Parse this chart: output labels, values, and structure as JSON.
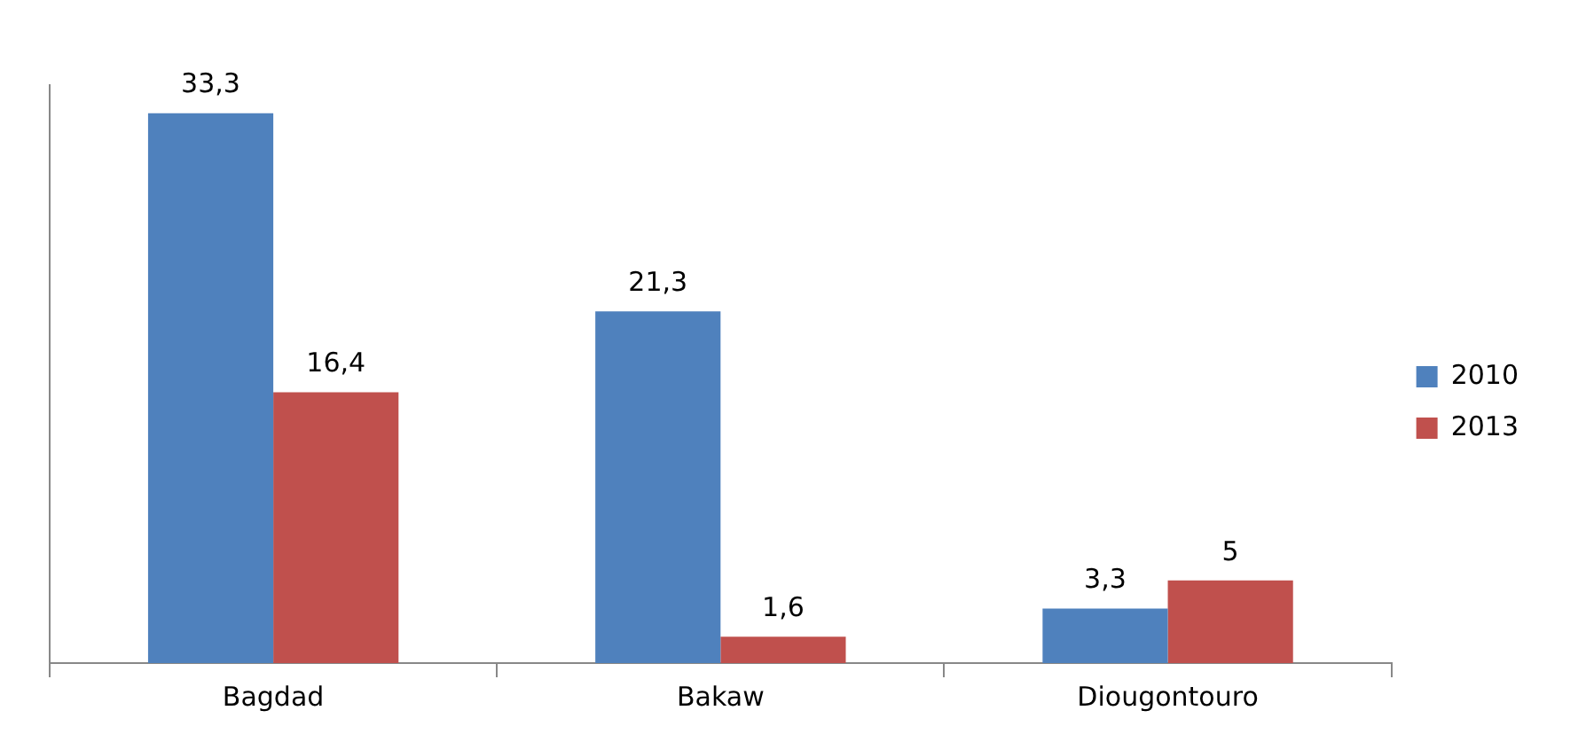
{
  "chart_data": {
    "type": "bar",
    "categories": [
      "Bagdad",
      "Bakaw",
      "Diougontouro"
    ],
    "series": [
      {
        "name": "2010",
        "color": "#4f81bd",
        "values": [
          33.3,
          21.3,
          3.3
        ],
        "value_labels": [
          "33,3",
          "21,3",
          "3,3"
        ]
      },
      {
        "name": "2013",
        "color": "#c0504d",
        "values": [
          16.4,
          1.6,
          5
        ],
        "value_labels": [
          "16,4",
          "1,6",
          "5"
        ]
      }
    ],
    "legend": "right",
    "grid": false
  }
}
